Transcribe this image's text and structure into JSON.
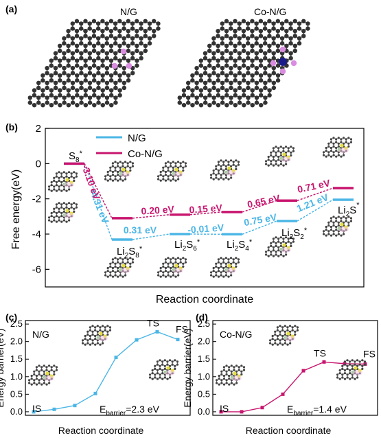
{
  "panels": {
    "a": {
      "label": "(a)",
      "left_title": "N/G",
      "right_title": "Co-N/G"
    },
    "b": {
      "label": "(b)"
    },
    "c": {
      "label": "(c)"
    },
    "d": {
      "label": "(d)"
    }
  },
  "colors": {
    "ng": "#4bb6e6",
    "cong": "#c8156e",
    "atom": "#333333",
    "n_atom": "#d98ce0",
    "co_atom": "#1a1a8a"
  },
  "chart_data": [
    {
      "id": "b",
      "type": "line",
      "title": "",
      "xlabel": "Reaction coordinate",
      "ylabel": "Free energy(eV)",
      "ylim": [
        -7,
        2
      ],
      "yticks": [
        2,
        0,
        -2,
        -4,
        -6
      ],
      "legend": {
        "position": "top-left",
        "entries": [
          "N/G",
          "Co-N/G"
        ]
      },
      "states": [
        "S8*",
        "Li2S8*",
        "Li2S6*",
        "Li2S4*",
        "Li2S2*",
        "Li2S*"
      ],
      "state_labels": [
        {
          "main": "S",
          "sub": "8",
          "sup": "*"
        },
        {
          "main": "Li",
          "sub": "2",
          "main2": "S",
          "sub2": "8",
          "sup": "*"
        },
        {
          "main": "Li",
          "sub": "2",
          "main2": "S",
          "sub2": "6",
          "sup": "*"
        },
        {
          "main": "Li",
          "sub": "2",
          "main2": "S",
          "sub2": "4",
          "sup": "*"
        },
        {
          "main": "Li",
          "sub": "2",
          "main2": "S",
          "sub2": "2",
          "sup": "*"
        },
        {
          "main": "Li",
          "sub": "2",
          "main2": "S",
          "sup": "*"
        }
      ],
      "series": [
        {
          "name": "N/G",
          "values": [
            0,
            -4.31,
            -4.0,
            -4.01,
            -3.26,
            -2.05
          ],
          "steps": [
            "-4.31 eV",
            "0.31 eV",
            "-0.01 eV",
            "0.75 eV",
            "1.21 eV"
          ]
        },
        {
          "name": "Co-N/G",
          "values": [
            0,
            -3.1,
            -2.9,
            -2.75,
            -2.1,
            -1.39
          ],
          "steps": [
            "-3.10 eV",
            "0.20 eV",
            "0.15 eV",
            "0.65 eV",
            "0.71 eV"
          ]
        }
      ]
    },
    {
      "id": "c",
      "type": "line",
      "title": "N/G",
      "xlabel": "Reaction coordinate",
      "ylabel": "Energy barrier(eV)",
      "ylim": [
        -0.1,
        2.6
      ],
      "yticks": [
        0.0,
        0.5,
        1.0,
        1.5,
        2.0,
        2.5
      ],
      "x": [
        0,
        1,
        2,
        3,
        4,
        5,
        6,
        7
      ],
      "series": [
        {
          "name": "N/G",
          "values": [
            0.0,
            0.07,
            0.18,
            0.52,
            1.55,
            2.05,
            2.28,
            2.06
          ]
        }
      ],
      "annotations": {
        "is": "IS",
        "ts": "TS",
        "fs": "FS",
        "barrier_prefix": "E",
        "barrier_sub": "barrier",
        "barrier_value": "=2.3 eV"
      }
    },
    {
      "id": "d",
      "type": "line",
      "title": "Co-N/G",
      "xlabel": "Reaction coordinate",
      "ylabel": "Energy barrier(eV)",
      "ylim": [
        -0.1,
        2.6
      ],
      "yticks": [
        0.0,
        0.5,
        1.0,
        1.5,
        2.0,
        2.5
      ],
      "x": [
        0,
        1,
        2,
        3,
        4,
        5,
        6,
        7
      ],
      "series": [
        {
          "name": "Co-N/G",
          "values": [
            0.0,
            0.0,
            0.12,
            0.5,
            1.17,
            1.42,
            1.37,
            1.36
          ]
        }
      ],
      "annotations": {
        "is": "IS",
        "ts": "TS",
        "fs": "FS",
        "barrier_prefix": "E",
        "barrier_sub": "barrier",
        "barrier_value": "=1.4 eV"
      }
    }
  ]
}
